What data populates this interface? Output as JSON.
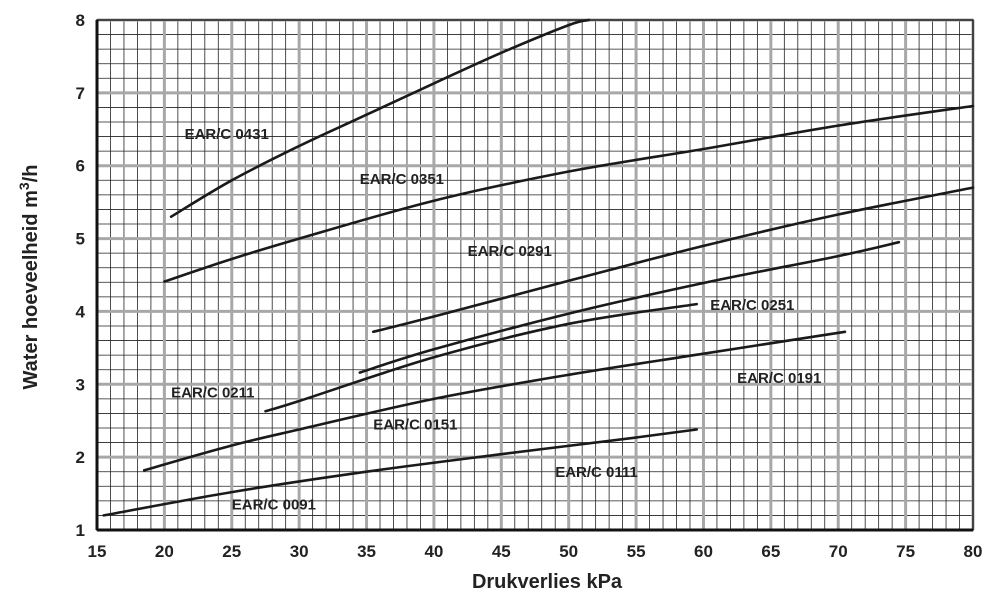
{
  "chart_data": {
    "type": "line",
    "xlabel": "Drukverlies  kPa",
    "ylabel_main": "Water hoeveelheid m",
    "ylabel_sup": "3",
    "ylabel_tail": "/h",
    "xlim": [
      15,
      80
    ],
    "ylim": [
      1,
      8
    ],
    "x_ticks": [
      15,
      20,
      25,
      30,
      35,
      40,
      45,
      50,
      55,
      60,
      65,
      70,
      75,
      80
    ],
    "y_ticks": [
      1,
      2,
      3,
      4,
      5,
      6,
      7,
      8
    ],
    "x_minor_step": 1,
    "y_minor_step": 0.2,
    "grid": true,
    "series": [
      {
        "name": "EAR/C 0091",
        "x": [
          15.5,
          25,
          35,
          45,
          55,
          59.5
        ],
        "y": [
          1.2,
          1.52,
          1.8,
          2.04,
          2.27,
          2.38
        ],
        "label_at": [
          25,
          1.28
        ]
      },
      {
        "name": "EAR/C 0111",
        "label_only": true,
        "label_at": [
          49,
          1.73
        ]
      },
      {
        "name": "EAR/C 0151",
        "x": [
          18.5,
          25,
          30,
          40,
          50,
          60,
          70.5
        ],
        "y": [
          1.82,
          2.16,
          2.38,
          2.8,
          3.13,
          3.42,
          3.72
        ],
        "label_at": [
          35.5,
          2.38
        ]
      },
      {
        "name": "EAR/C 0191",
        "label_only": true,
        "label_at": [
          62.5,
          3.02
        ]
      },
      {
        "name": "EAR/C 0211",
        "x": [
          27.5,
          30,
          40,
          50,
          59.5
        ],
        "y": [
          2.63,
          2.77,
          3.37,
          3.83,
          4.1
        ],
        "label_at": [
          20.5,
          2.82
        ]
      },
      {
        "name": "EAR/C 0251",
        "x": [
          34.5,
          40,
          50,
          60,
          70,
          74.5
        ],
        "y": [
          3.16,
          3.48,
          3.97,
          4.39,
          4.76,
          4.95
        ],
        "label_at": [
          60.5,
          4.02
        ]
      },
      {
        "name": "EAR/C 0291",
        "x": [
          35.5,
          40,
          50,
          60,
          70,
          80
        ],
        "y": [
          3.72,
          3.93,
          4.42,
          4.9,
          5.33,
          5.7
        ],
        "label_at": [
          42.5,
          4.76
        ]
      },
      {
        "name": "EAR/C 0351",
        "x": [
          20,
          25,
          30,
          40,
          50,
          60,
          70,
          80
        ],
        "y": [
          4.41,
          4.72,
          5.0,
          5.52,
          5.92,
          6.23,
          6.55,
          6.82
        ],
        "label_at": [
          34.5,
          5.75
        ]
      },
      {
        "name": "EAR/C 0431",
        "x": [
          20.5,
          25,
          30,
          35,
          40,
          45,
          50,
          51.5
        ],
        "y": [
          5.3,
          5.8,
          6.27,
          6.7,
          7.13,
          7.55,
          7.93,
          8.0
        ],
        "label_at": [
          21.5,
          6.37
        ]
      }
    ]
  }
}
